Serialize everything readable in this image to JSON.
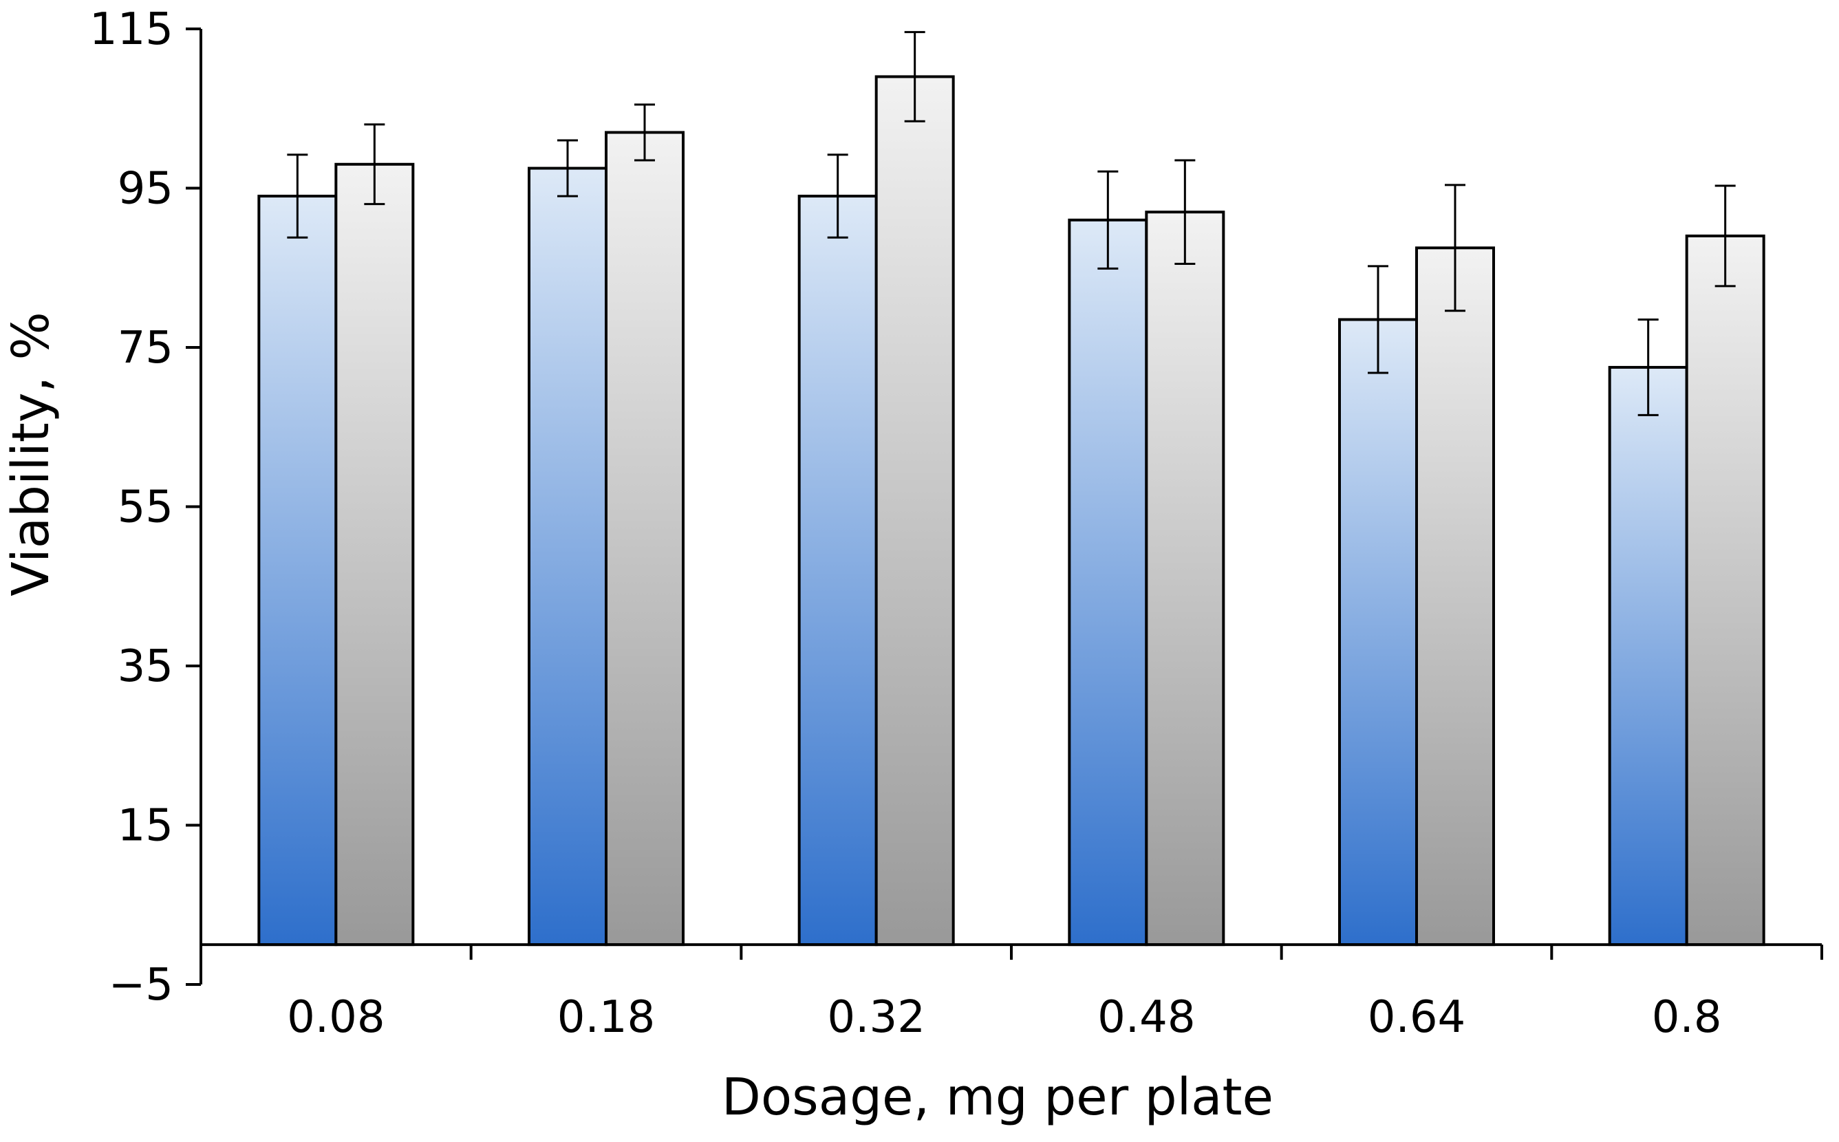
{
  "chart_data": {
    "type": "bar",
    "title": "",
    "xlabel": "Dosage, mg per plate",
    "ylabel": "Viability, %",
    "categories": [
      "0.08",
      "0.18",
      "0.32",
      "0.48",
      "0.64",
      "0.8"
    ],
    "ylim": [
      -5,
      115
    ],
    "yticks": [
      -5,
      15,
      35,
      55,
      75,
      95,
      115
    ],
    "ytick_labels": [
      "−5",
      "15",
      "35",
      "55",
      "75",
      "95",
      "115"
    ],
    "grid": false,
    "legend": "none",
    "baseline": 0,
    "series": [
      {
        "values": [
          94.0,
          97.5,
          94.0,
          91.0,
          78.5,
          72.5
        ],
        "errors": [
          5.2,
          3.5,
          5.2,
          6.1,
          6.7,
          6.0
        ],
        "color_top": "#dde9f7",
        "color_bottom": "#2e6fcb"
      },
      {
        "values": [
          98.0,
          102.0,
          109.0,
          92.0,
          87.5,
          89.0
        ],
        "errors": [
          5.0,
          3.5,
          5.6,
          6.5,
          7.9,
          6.3
        ],
        "color_top": "#f2f2f2",
        "color_bottom": "#999999"
      }
    ]
  }
}
